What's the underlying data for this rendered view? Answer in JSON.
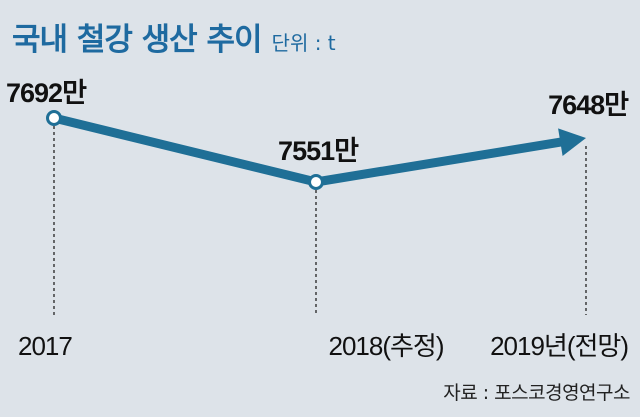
{
  "title": "국내 철강 생산 추이",
  "unit": "단위 : t",
  "source": "자료 : 포스코경영연구소",
  "colors": {
    "line": "#1f6f96",
    "background": "#dde3e9",
    "title": "#1e6aa0"
  },
  "chart_data": {
    "type": "line",
    "categories": [
      "2017",
      "2018(추정)",
      "2019년(전망)"
    ],
    "values": [
      7692,
      7551,
      7648
    ],
    "value_labels": [
      "7692만",
      "7551만",
      "7648만"
    ],
    "ylabel": "",
    "last_point_marker": "arrow"
  }
}
